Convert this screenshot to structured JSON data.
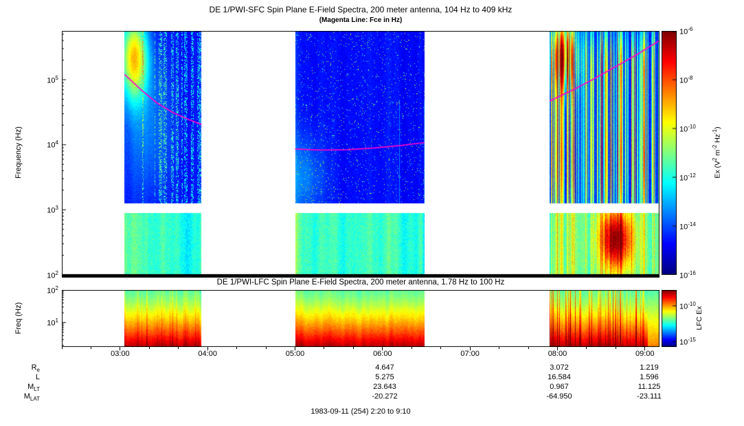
{
  "title": "DE 1/PWI-SFC  Spin Plane E-Field Spectra, 200 meter antenna, 104 Hz to 409 kHz",
  "subtitle": "(Magenta Line: Fce in Hz)",
  "lfc_title": "DE 1/PWI-LFC  Spin Plane E-Field Spectra, 200 meter antenna, 1.78 Hz to 100 Hz",
  "footer": "1983-09-11 (254) 2:20 to 9:10",
  "axes": {
    "sfc_ylabel": "Frequency (Hz)",
    "lfc_ylabel": "Freq (Hz)",
    "sfc_ytick_exponents": [
      5,
      4,
      3,
      2
    ],
    "lfc_ytick_exponents": [
      2,
      1
    ],
    "xtick_labels": [
      "03:00",
      "04:00",
      "05:00",
      "06:00",
      "07:00",
      "08:00",
      "09:00"
    ],
    "xtick_hours": [
      3,
      4,
      5,
      6,
      7,
      8,
      9
    ]
  },
  "colorbars": {
    "sfc": {
      "tick_exponents": [
        -6,
        -8,
        -10,
        -12,
        -14,
        -16
      ],
      "label_parts": [
        "Ex (V",
        "2",
        " m",
        "-2",
        " Hz",
        "-1",
        ")"
      ]
    },
    "lfc": {
      "tick_exponents": [
        -10,
        -15
      ],
      "label": "LFC Ex"
    }
  },
  "ephemeris": {
    "rows": [
      {
        "label": "R",
        "sub": "e",
        "values": [
          "4.647",
          "3.072",
          "1.219"
        ]
      },
      {
        "label": "L",
        "sub": "",
        "values": [
          "5.275",
          "16.584",
          "1.596"
        ]
      },
      {
        "label": "M",
        "sub": "LT",
        "values": [
          "23.643",
          "0.967",
          "11.125"
        ]
      },
      {
        "label": "M",
        "sub": "LAT",
        "values": [
          "-20.272",
          "-64.950",
          "-23.111"
        ]
      }
    ]
  },
  "chart_data": {
    "type": "heatmap",
    "subtype": "spectrogram",
    "title": "DE 1/PWI-SFC Spin Plane E-Field Spectra, 200 meter antenna, 104 Hz to 409 kHz",
    "x_range_hours": [
      2.3333,
      9.1667
    ],
    "x_tick_labels": [
      "03:00",
      "04:00",
      "05:00",
      "06:00",
      "07:00",
      "08:00",
      "09:00"
    ],
    "date_label": "1983-09-11 (254) 2:20 to 9:10",
    "panels": [
      {
        "name": "SFC",
        "ylabel": "Frequency (Hz)",
        "y_scale": "log",
        "y_range_hz": [
          100,
          562000
        ],
        "value_label": "Ex (V^2 m^-2 Hz^-1)",
        "value_scale": "log",
        "value_range": [
          1e-16,
          1e-06
        ],
        "no_data_band_hz": [
          900,
          1260
        ],
        "time_segments_hours": [
          [
            3.05,
            3.93
          ],
          [
            5.0,
            6.48
          ],
          [
            7.91,
            9.1667
          ]
        ],
        "segment_texture": [
          "patchy",
          "sparse",
          "streaky"
        ]
      },
      {
        "name": "LFC",
        "ylabel": "Freq (Hz)",
        "y_scale": "log",
        "y_range_hz": [
          1.78,
          100
        ],
        "value_label": "LFC Ex",
        "value_tick_range": [
          1e-15,
          1e-10
        ],
        "time_segments_hours": [
          [
            3.05,
            3.93
          ],
          [
            5.0,
            6.48
          ],
          [
            7.91,
            9.1667
          ]
        ],
        "segment_texture": [
          "banded",
          "banded",
          "banded-streaky"
        ]
      }
    ],
    "fce_line_hz": {
      "color": "#FF00CC",
      "points": [
        [
          3.05,
          120000
        ],
        [
          3.25,
          68000
        ],
        [
          3.42,
          44000
        ],
        [
          3.6,
          31500
        ],
        [
          3.78,
          24500
        ],
        [
          3.93,
          20500
        ],
        [
          5.0,
          8600
        ],
        [
          5.3,
          8300
        ],
        [
          5.6,
          8400
        ],
        [
          5.9,
          8900
        ],
        [
          6.2,
          9700
        ],
        [
          6.48,
          10800
        ],
        [
          7.91,
          47000
        ],
        [
          8.15,
          67000
        ],
        [
          8.4,
          100000
        ],
        [
          8.65,
          155000
        ],
        [
          8.9,
          240000
        ],
        [
          9.1667,
          400000
        ]
      ]
    }
  }
}
